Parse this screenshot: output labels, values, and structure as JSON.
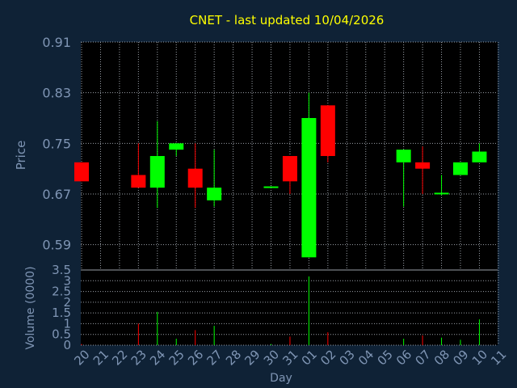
{
  "colors": {
    "background": "#0f2236",
    "plot_background": "#000000",
    "grid": "#9aa0a8",
    "title": "#ffff00",
    "axis_text": "#7f95b4",
    "up": "#00ff00",
    "down": "#ff0000"
  },
  "chart_data": [
    {
      "type": "candlestick",
      "title": "CNET - last updated 10/04/2026",
      "ylabel": "Price",
      "ylim": [
        0.55,
        0.91
      ],
      "yticks": [
        "0.59",
        "0.67",
        "0.75",
        "0.83",
        "0.91"
      ],
      "grid": true,
      "x": [
        "20",
        "21",
        "22",
        "23",
        "24",
        "25",
        "26",
        "27",
        "28",
        "29",
        "30",
        "31",
        "01",
        "02",
        "03",
        "04",
        "05",
        "06",
        "07",
        "08",
        "09",
        "10",
        "11"
      ],
      "candles": [
        {
          "day": "20",
          "open": 0.72,
          "close": 0.69,
          "high": 0.72,
          "low": 0.69
        },
        {
          "day": "23",
          "open": 0.7,
          "close": 0.68,
          "high": 0.75,
          "low": 0.68
        },
        {
          "day": "24",
          "open": 0.68,
          "close": 0.73,
          "high": 0.785,
          "low": 0.648
        },
        {
          "day": "25",
          "open": 0.74,
          "close": 0.75,
          "high": 0.75,
          "low": 0.73
        },
        {
          "day": "26",
          "open": 0.71,
          "close": 0.68,
          "high": 0.75,
          "low": 0.648
        },
        {
          "day": "27",
          "open": 0.66,
          "close": 0.68,
          "high": 0.74,
          "low": 0.65
        },
        {
          "day": "30",
          "open": 0.68,
          "close": 0.682,
          "high": 0.682,
          "low": 0.68
        },
        {
          "day": "31",
          "open": 0.73,
          "close": 0.69,
          "high": 0.73,
          "low": 0.67
        },
        {
          "day": "01",
          "open": 0.57,
          "close": 0.79,
          "high": 0.83,
          "low": 0.57
        },
        {
          "day": "02",
          "open": 0.81,
          "close": 0.73,
          "high": 0.81,
          "low": 0.72
        },
        {
          "day": "06",
          "open": 0.72,
          "close": 0.74,
          "high": 0.74,
          "low": 0.65
        },
        {
          "day": "07",
          "open": 0.72,
          "close": 0.71,
          "high": 0.745,
          "low": 0.67
        },
        {
          "day": "08",
          "open": 0.67,
          "close": 0.672,
          "high": 0.7,
          "low": 0.668
        },
        {
          "day": "09",
          "open": 0.7,
          "close": 0.72,
          "high": 0.72,
          "low": 0.7
        },
        {
          "day": "10",
          "open": 0.72,
          "close": 0.737,
          "high": 0.75,
          "low": 0.72
        }
      ]
    },
    {
      "type": "bar",
      "ylabel": "Volume (0000)",
      "xlabel": "Day",
      "ylim": [
        0,
        3.5
      ],
      "yticks": [
        "0",
        "0.5",
        "1",
        "1.5",
        "2",
        "2.5",
        "3",
        "3.5"
      ],
      "grid": true,
      "x": [
        "20",
        "21",
        "22",
        "23",
        "24",
        "25",
        "26",
        "27",
        "28",
        "29",
        "30",
        "31",
        "01",
        "02",
        "03",
        "04",
        "05",
        "06",
        "07",
        "08",
        "09",
        "10",
        "11"
      ],
      "bars": [
        {
          "day": "20",
          "value": 0.05,
          "direction": "down"
        },
        {
          "day": "23",
          "value": 1.0,
          "direction": "down"
        },
        {
          "day": "24",
          "value": 1.55,
          "direction": "up"
        },
        {
          "day": "25",
          "value": 0.3,
          "direction": "up"
        },
        {
          "day": "26",
          "value": 0.7,
          "direction": "down"
        },
        {
          "day": "27",
          "value": 0.9,
          "direction": "up"
        },
        {
          "day": "30",
          "value": 0.05,
          "direction": "up"
        },
        {
          "day": "31",
          "value": 0.4,
          "direction": "down"
        },
        {
          "day": "01",
          "value": 3.2,
          "direction": "up"
        },
        {
          "day": "02",
          "value": 0.6,
          "direction": "down"
        },
        {
          "day": "06",
          "value": 0.3,
          "direction": "up"
        },
        {
          "day": "07",
          "value": 0.45,
          "direction": "down"
        },
        {
          "day": "08",
          "value": 0.35,
          "direction": "up"
        },
        {
          "day": "09",
          "value": 0.25,
          "direction": "up"
        },
        {
          "day": "10",
          "value": 1.2,
          "direction": "up"
        }
      ]
    }
  ]
}
